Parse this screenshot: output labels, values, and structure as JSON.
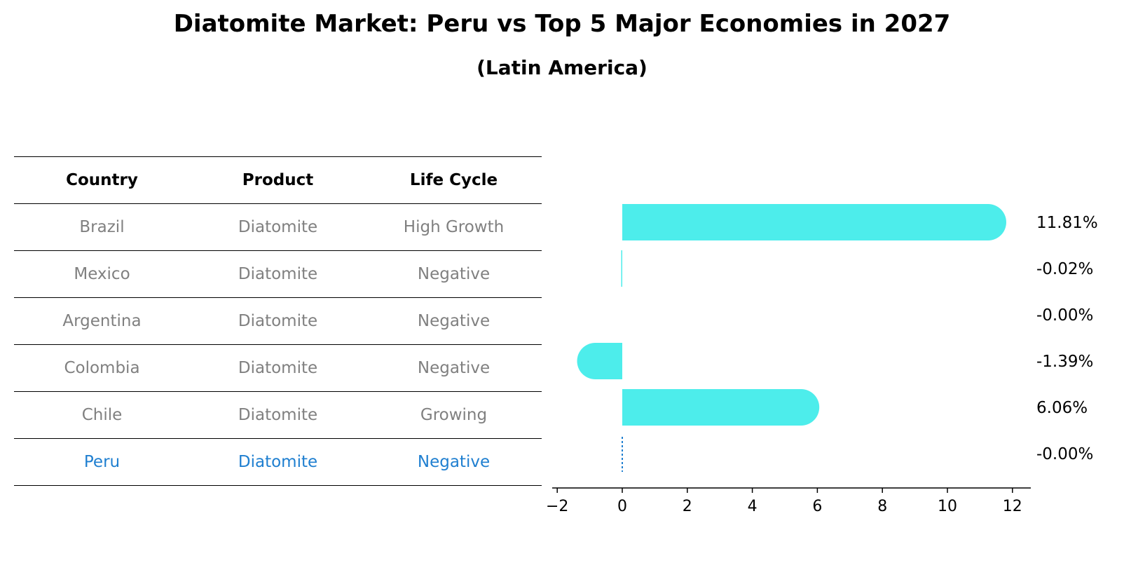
{
  "title": "Diatomite Market: Peru vs Top 5 Major Economies in 2027",
  "subtitle": "(Latin America)",
  "table": {
    "headers": [
      "Country",
      "Product",
      "Life Cycle"
    ],
    "rows": [
      [
        "Brazil",
        "Diatomite",
        "High Growth"
      ],
      [
        "Mexico",
        "Diatomite",
        "Negative"
      ],
      [
        "Argentina",
        "Diatomite",
        "Negative"
      ],
      [
        "Colombia",
        "Diatomite",
        "Negative"
      ],
      [
        "Chile",
        "Diatomite",
        "Growing"
      ],
      [
        "Peru",
        "Diatomite",
        "Negative"
      ]
    ],
    "highlight_row": 5,
    "highlight_color": "#1f7fd0",
    "text_color": "#808080"
  },
  "chart_data": {
    "type": "bar",
    "orientation": "horizontal",
    "categories": [
      "Brazil",
      "Mexico",
      "Argentina",
      "Colombia",
      "Chile",
      "Peru"
    ],
    "values": [
      11.81,
      -0.02,
      -0.0,
      -1.39,
      6.06,
      -0.0
    ],
    "value_labels": [
      "11.81%",
      "-0.02%",
      "-0.00%",
      "-1.39%",
      "6.06%",
      "-0.00%"
    ],
    "xlim": [
      -2.1,
      12.5
    ],
    "xticks": [
      -2,
      0,
      2,
      4,
      6,
      8,
      10,
      12
    ],
    "xtick_labels": [
      "−2",
      "0",
      "2",
      "4",
      "6",
      "8",
      "10",
      "12"
    ],
    "bar_color": "#4ded eb",
    "highlight_line_color": "#1f7fd0",
    "grid": false
  }
}
